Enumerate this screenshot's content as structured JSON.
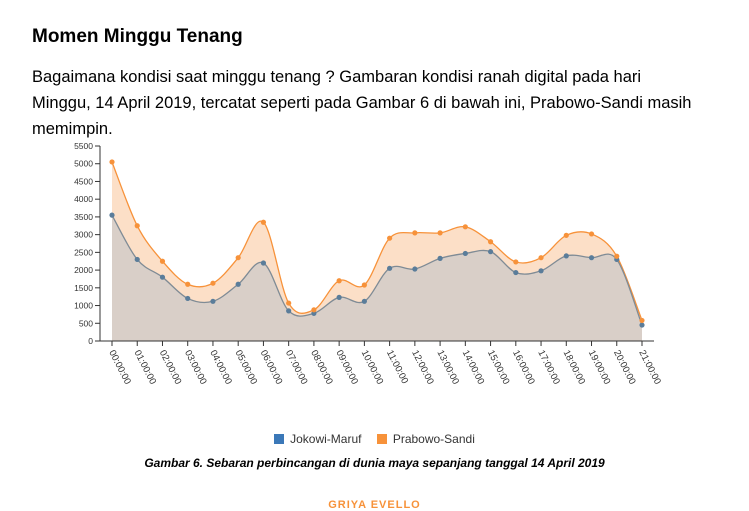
{
  "article": {
    "heading": "Momen Minggu Tenang",
    "paragraph": "Bagaimana kondisi saat minggu tenang ? Gambaran kondisi ranah digital pada hari Minggu, 14 April 2019, tercatat seperti pada Gambar 6 di bawah ini, Prabowo-Sandi masih memimpin.",
    "caption": "Gambar 6. Sebaran perbincangan di dunia maya sepanjang tanggal 14 April 2019",
    "footer": "GRIYA EVELLO"
  },
  "chart_data": {
    "type": "area",
    "x": [
      "00:00:00",
      "01:00:00",
      "02:00:00",
      "03:00:00",
      "04:00:00",
      "05:00:00",
      "06:00:00",
      "07:00:00",
      "08:00:00",
      "09:00:00",
      "10:00:00",
      "11:00:00",
      "12:00:00",
      "13:00:00",
      "14:00:00",
      "15:00:00",
      "16:00:00",
      "17:00:00",
      "18:00:00",
      "19:00:00",
      "20:00:00",
      "21:00:00"
    ],
    "series": [
      {
        "name": "Jokowi-Maruf",
        "color": "#3b78b8",
        "values": [
          3550,
          2300,
          1800,
          1200,
          1120,
          1600,
          2200,
          850,
          780,
          1230,
          1120,
          2050,
          2030,
          2330,
          2470,
          2520,
          1930,
          1980,
          2400,
          2350,
          2300,
          450
        ]
      },
      {
        "name": "Prabowo-Sandi",
        "color": "#f7923a",
        "values": [
          5050,
          3250,
          2250,
          1600,
          1630,
          2350,
          3350,
          1070,
          880,
          1700,
          1580,
          2900,
          3050,
          3050,
          3220,
          2800,
          2230,
          2350,
          2980,
          3020,
          2390,
          580
        ]
      }
    ],
    "yticks": [
      0,
      500,
      1000,
      1500,
      2000,
      2500,
      3000,
      3500,
      4000,
      4500,
      5000,
      5500
    ],
    "ylim": [
      0,
      5500
    ],
    "grid": false,
    "legend": "bottom"
  }
}
